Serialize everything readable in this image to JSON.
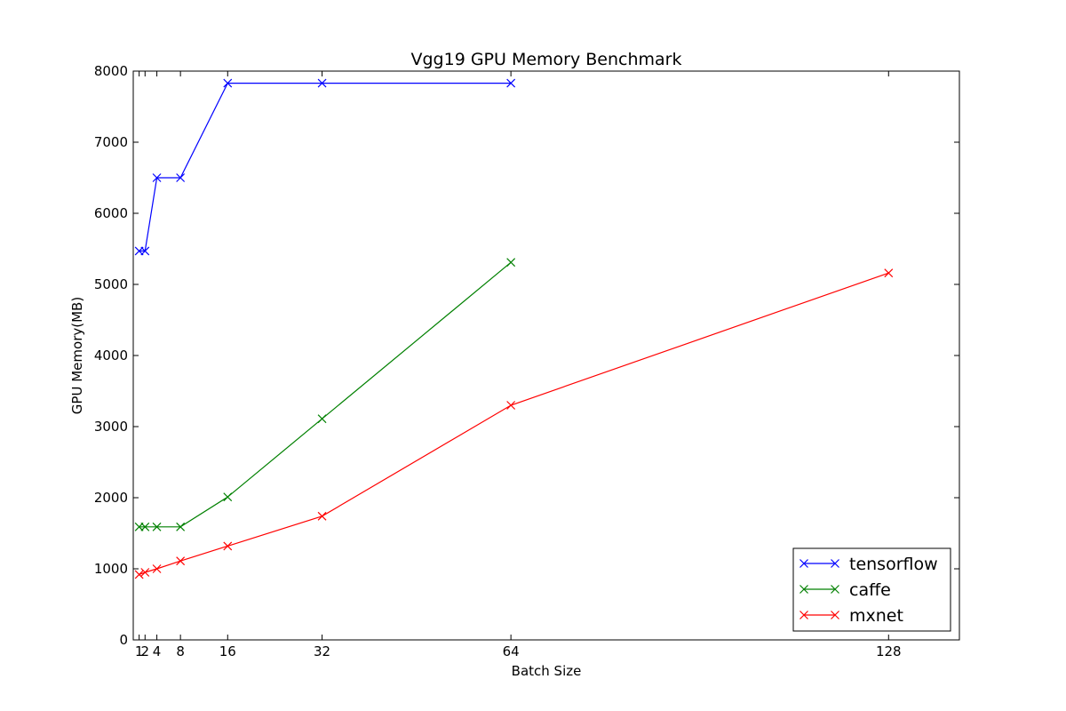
{
  "chart_data": {
    "type": "line",
    "title": "Vgg19 GPU Memory Benchmark",
    "xlabel": "Batch Size",
    "ylabel": "GPU Memory(MB)",
    "xlim": [
      0,
      140
    ],
    "ylim": [
      0,
      8000
    ],
    "xticks": [
      1,
      2,
      4,
      8,
      16,
      32,
      64,
      128
    ],
    "yticks": [
      0,
      1000,
      2000,
      3000,
      4000,
      5000,
      6000,
      7000,
      8000
    ],
    "grid": false,
    "legend_position": "bottom-right",
    "marker": "x",
    "series": [
      {
        "name": "tensorflow",
        "color": "#0000ff",
        "x": [
          1,
          2,
          4,
          8,
          16,
          32,
          64
        ],
        "y": [
          5470,
          5470,
          6500,
          6500,
          7830,
          7830,
          7830
        ]
      },
      {
        "name": "caffe",
        "color": "#008000",
        "x": [
          1,
          2,
          4,
          8,
          16,
          32,
          64
        ],
        "y": [
          1590,
          1590,
          1590,
          1590,
          2010,
          3110,
          5310
        ]
      },
      {
        "name": "mxnet",
        "color": "#ff0000",
        "x": [
          1,
          2,
          4,
          8,
          16,
          32,
          64,
          128
        ],
        "y": [
          920,
          950,
          1000,
          1110,
          1320,
          1740,
          3300,
          5160
        ]
      }
    ]
  }
}
